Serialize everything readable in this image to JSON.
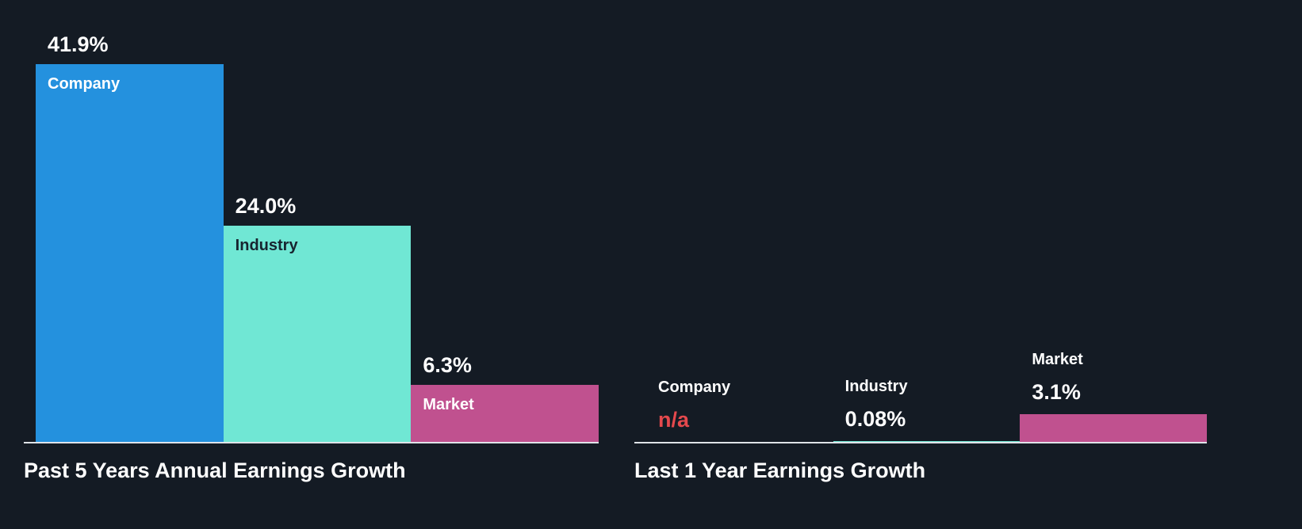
{
  "theme": {
    "background": "#141b24",
    "text_color": "#ffffff",
    "axis_line_color": "#dfe3e8",
    "na_text_color": "#e5494d",
    "bar_blue": "#2491de",
    "bar_teal": "#70e7d4",
    "bar_pink": "#c0518f"
  },
  "chart_data": [
    {
      "type": "bar",
      "title": "Past 5 Years Annual Earnings Growth",
      "categories": [
        "Company",
        "Industry",
        "Market"
      ],
      "values": [
        41.9,
        24.0,
        6.3
      ],
      "value_labels": [
        "41.9%",
        "24.0%",
        "6.3%"
      ],
      "unit": "%",
      "bar_colors": [
        "#2491de",
        "#70e7d4",
        "#c0518f"
      ],
      "category_label_colors": [
        "#ffffff",
        "#17242f",
        "#ffffff"
      ],
      "value_label_colors": [
        "#ffffff",
        "#ffffff",
        "#ffffff"
      ],
      "category_label_position": "inside-bar",
      "ylim": [
        0,
        49
      ],
      "grid": false,
      "legend": "none"
    },
    {
      "type": "bar",
      "title": "Last 1 Year Earnings Growth",
      "categories": [
        "Company",
        "Industry",
        "Market"
      ],
      "values": [
        null,
        0.08,
        3.1
      ],
      "value_labels": [
        "n/a",
        "0.08%",
        "3.1%"
      ],
      "unit": "%",
      "bar_colors": [
        "#2491de",
        "#70e7d4",
        "#c0518f"
      ],
      "category_label_colors": [
        "#ffffff",
        "#ffffff",
        "#ffffff"
      ],
      "value_label_colors": [
        "#e5494d",
        "#ffffff",
        "#ffffff"
      ],
      "category_label_position": "above-bar",
      "ylim": [
        0,
        49
      ],
      "grid": false,
      "legend": "none"
    }
  ]
}
